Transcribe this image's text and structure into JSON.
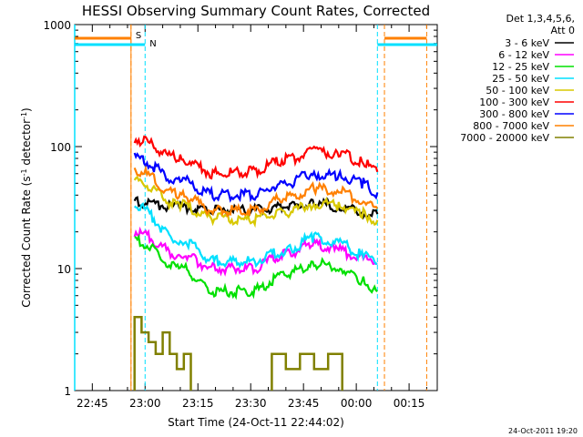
{
  "chart_data": {
    "type": "line",
    "title": "HESSI Observing Summary Count Rates, Corrected",
    "xlabel": "Start Time (24-Oct-11 22:44:02)",
    "ylabel_main": "Corrected Count Rate (s",
    "ylabel_sup1": "-1",
    "ylabel_mid": " detector",
    "ylabel_sup2": "-1",
    "ylabel_end": ")",
    "yscale": "log",
    "ylim": [
      1,
      1000
    ],
    "xlim": [
      "22:40",
      "00:23"
    ],
    "x_ticks": [
      "22:45",
      "23:00",
      "23:15",
      "23:30",
      "23:45",
      "00:00",
      "00:15"
    ],
    "y_ticks": [
      "1",
      "10",
      "100",
      "1000"
    ],
    "legend": {
      "placement": "right",
      "header1": "Det 1,3,4,5,6,",
      "header2": "Att 0",
      "entries": [
        {
          "label": "3 - 6 keV",
          "color": "#000000"
        },
        {
          "label": "6 - 12 keV",
          "color": "#ff00ff"
        },
        {
          "label": "12 - 25 keV",
          "color": "#00e000"
        },
        {
          "label": "25 - 50 keV",
          "color": "#00e0ff"
        },
        {
          "label": "50 - 100 keV",
          "color": "#d8c800"
        },
        {
          "label": "100 - 300 keV",
          "color": "#ff0000"
        },
        {
          "label": "300 - 800 keV",
          "color": "#0000ff"
        },
        {
          "label": "800 - 7000 keV",
          "color": "#ff8000"
        },
        {
          "label": "7000 - 20000 keV",
          "color": "#808000"
        }
      ]
    },
    "markers": {
      "saa_label": "S",
      "night_label": "N",
      "saa_color": "#ff8000",
      "night_color": "#00e0ff",
      "saa_lines": [
        "22:56",
        "00:08",
        "00:20"
      ],
      "night_lines": [
        "23:00",
        "00:06"
      ]
    },
    "time_nodes": [
      "22:57",
      "23:10",
      "23:20",
      "23:30",
      "23:40",
      "23:48",
      "23:55",
      "00:02",
      "00:06"
    ],
    "series": [
      {
        "name": "3 - 6 keV",
        "color": "#000000",
        "values": [
          35,
          32,
          30,
          30,
          32,
          34,
          32,
          29,
          28
        ]
      },
      {
        "name": "6 - 12 keV",
        "color": "#ff00ff",
        "values": [
          20,
          13,
          10,
          10,
          13,
          16,
          14,
          12,
          11
        ]
      },
      {
        "name": "12 - 25 keV",
        "color": "#00e000",
        "values": [
          17,
          10,
          6.5,
          6.5,
          9,
          11,
          10,
          8,
          6.5
        ]
      },
      {
        "name": "25 - 50 keV",
        "color": "#00e0ff",
        "values": [
          33,
          17,
          11.5,
          11.5,
          14,
          18,
          16,
          13,
          11
        ]
      },
      {
        "name": "50 - 100 keV",
        "color": "#d8c800",
        "values": [
          52,
          33,
          26,
          25,
          29,
          34,
          33,
          28,
          25
        ]
      },
      {
        "name": "100 - 300 keV",
        "color": "#ff0000",
        "values": [
          115,
          80,
          60,
          62,
          78,
          90,
          88,
          74,
          62
        ]
      },
      {
        "name": "300 - 800 keV",
        "color": "#0000ff",
        "values": [
          80,
          53,
          40,
          40,
          50,
          60,
          58,
          50,
          42
        ]
      },
      {
        "name": "800 - 7000 keV",
        "color": "#ff8000",
        "values": [
          64,
          40,
          30,
          30,
          38,
          45,
          43,
          36,
          31
        ]
      }
    ],
    "steps_series": {
      "name": "7000 - 20000 keV",
      "color": "#808000",
      "segments": [
        {
          "x": [
            "22:57",
            "22:57",
            "22:59",
            "22:59",
            "23:01",
            "23:01",
            "23:03",
            "23:03",
            "23:05",
            "23:05",
            "23:07",
            "23:07",
            "23:09",
            "23:09",
            "23:11",
            "23:11",
            "23:13",
            "23:13"
          ],
          "y": [
            1,
            4,
            4,
            3,
            3,
            2.5,
            2.5,
            2,
            2,
            3,
            3,
            2,
            2,
            1.5,
            1.5,
            2,
            2,
            1
          ]
        },
        {
          "x": [
            "23:36",
            "23:36",
            "23:40",
            "23:40",
            "23:44",
            "23:44",
            "23:48",
            "23:48",
            "23:52",
            "23:52",
            "23:56",
            "23:56"
          ],
          "y": [
            1,
            2,
            2,
            1.5,
            1.5,
            2,
            2,
            1.5,
            1.5,
            2,
            2,
            1
          ]
        }
      ]
    },
    "annotations": {
      "date_stamp": "24-Oct-2011 19:20"
    }
  }
}
